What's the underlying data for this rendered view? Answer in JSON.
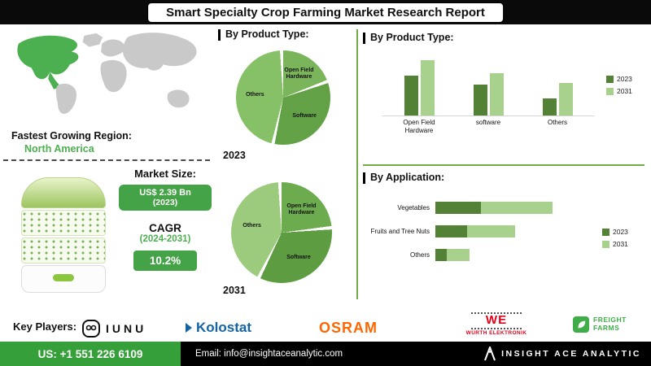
{
  "header": {
    "title": "Smart Specialty Crop Farming Market Research Report"
  },
  "region": {
    "label": "Fastest Growing Region:",
    "value": "North America"
  },
  "market": {
    "size_label": "Market Size:",
    "size_value_line1": "US$  2.39 Bn",
    "size_value_line2": "(2023)",
    "cagr_label": "CAGR",
    "cagr_period": "(2024-2031)",
    "cagr_value": "10.2%"
  },
  "sections": {
    "pies_heading": "By Product Type:",
    "product_bars_heading": "By Product Type:",
    "application_heading": "By Application:"
  },
  "key_players": {
    "label": "Key Players:",
    "iunu": "IUNU",
    "kolostat": "Kolostat",
    "osram": "OSRAM",
    "wurth_mark": "WE",
    "wurth_name": "WÜRTH ELEKTRONIK",
    "freight_line1": "FREIGHT",
    "freight_line2": "FARMS"
  },
  "footer": {
    "phone": "US: +1 551 226 6109",
    "email": "Email: info@insightaceanalytic.com",
    "brand": "INSIGHT ACE ANALYTIC"
  },
  "colors": {
    "accent_green": "#4caf50",
    "series_2023": "#538135",
    "series_2031": "#a9d18e",
    "value_box_green": "#45a347",
    "footer_green": "#35a039",
    "divider_green": "#70ad47"
  },
  "chart_data": [
    {
      "id": "pie2023",
      "type": "pie",
      "title": "2023",
      "labels": [
        "Open Field Hardware",
        "Software",
        "Others"
      ],
      "values": [
        20,
        34,
        46
      ],
      "colors": [
        "#7ab55c",
        "#63a147",
        "#86c167"
      ]
    },
    {
      "id": "pie2031",
      "type": "pie",
      "title": "2031",
      "labels": [
        "Open Field Hardware",
        "Software",
        "Others"
      ],
      "values": [
        24,
        34,
        42
      ],
      "colors": [
        "#6cab4e",
        "#5d9c41",
        "#9ccb7e"
      ]
    },
    {
      "id": "productBar",
      "type": "bar",
      "title": "By Product Type:",
      "categories": [
        "Open Field\nHardware",
        "software",
        "Others"
      ],
      "series": [
        {
          "name": "2023",
          "color": "#538135",
          "values": [
            52,
            40,
            22
          ]
        },
        {
          "name": "2031",
          "color": "#a9d18e",
          "values": [
            72,
            55,
            42
          ]
        }
      ],
      "ylim": [
        0,
        80
      ],
      "grid": false,
      "legend_position": "right"
    },
    {
      "id": "applicationBar",
      "type": "bar",
      "orientation": "horizontal-stacked",
      "title": "By Application:",
      "categories": [
        "Vegetables",
        "Fruits and Tree Nuts",
        "Others"
      ],
      "series": [
        {
          "name": "2023",
          "color": "#538135",
          "values": [
            32,
            22,
            8
          ]
        },
        {
          "name": "2031",
          "color": "#a9d18e",
          "values": [
            50,
            34,
            16
          ]
        }
      ],
      "xlim": [
        0,
        100
      ],
      "grid": false,
      "legend_position": "right"
    }
  ]
}
